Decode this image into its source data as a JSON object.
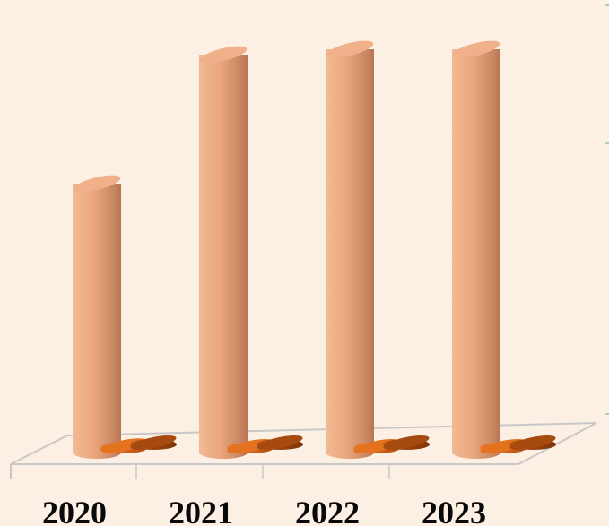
{
  "chart_data": {
    "type": "bar",
    "style": "3d-cylinder",
    "categories": [
      "2020",
      "2021",
      "2022",
      "2023"
    ],
    "series": [
      {
        "values": [
          100,
          148,
          150,
          150
        ],
        "color": "#e9a57c"
      },
      {
        "values": [
          5,
          1,
          1,
          1
        ],
        "color": "#d96518"
      },
      {
        "values": [
          1,
          1,
          1,
          1
        ],
        "color": "#a8480e"
      }
    ],
    "ylim": [
      0,
      160
    ],
    "grid": false,
    "colors": {
      "background": "#fcefe3",
      "floor_line": "#c8c8c8",
      "wall_tick": "#9ac79a"
    }
  }
}
